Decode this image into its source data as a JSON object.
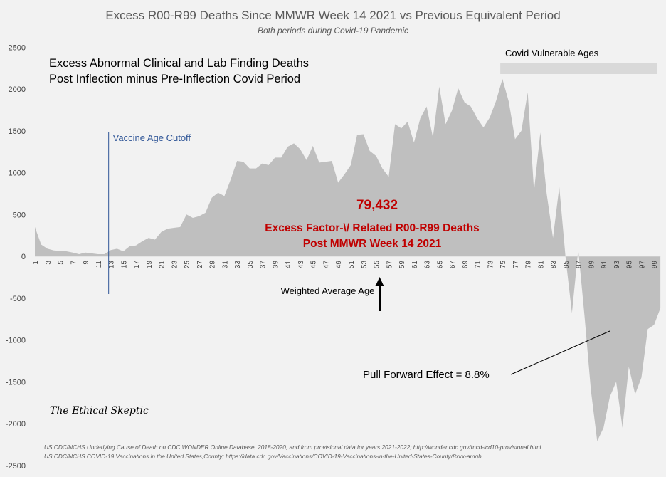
{
  "chart_data": {
    "type": "area",
    "title": "Excess R00-R99 Deaths Since MMWR Week 14 2021 vs Previous Equivalent Period",
    "subtitle": "Both periods during Covid-19 Pandemic",
    "xlabel": "",
    "ylabel": "",
    "ylim": [
      -2500,
      2500
    ],
    "yticks": [
      2500,
      2000,
      1500,
      1000,
      500,
      0,
      -500,
      -1000,
      -1500,
      -2000,
      -2500
    ],
    "x_tick_labels": [
      "1",
      "3",
      "5",
      "7",
      "9",
      "11",
      "13",
      "15",
      "17",
      "19",
      "21",
      "23",
      "25",
      "27",
      "29",
      "31",
      "33",
      "35",
      "37",
      "39",
      "41",
      "43",
      "45",
      "47",
      "49",
      "51",
      "53",
      "55",
      "57",
      "59",
      "61",
      "63",
      "65",
      "67",
      "69",
      "71",
      "73",
      "75",
      "77",
      "79",
      "81",
      "83",
      "85",
      "87",
      "89",
      "91",
      "93",
      "95",
      "97",
      "99"
    ],
    "grid": false,
    "color": "#bfbfbf",
    "x": [
      1,
      2,
      3,
      4,
      5,
      6,
      7,
      8,
      9,
      10,
      11,
      12,
      13,
      14,
      15,
      16,
      17,
      18,
      19,
      20,
      21,
      22,
      23,
      24,
      25,
      26,
      27,
      28,
      29,
      30,
      31,
      32,
      33,
      34,
      35,
      36,
      37,
      38,
      39,
      40,
      41,
      42,
      43,
      44,
      45,
      46,
      47,
      48,
      49,
      50,
      51,
      52,
      53,
      54,
      55,
      56,
      57,
      58,
      59,
      60,
      61,
      62,
      63,
      64,
      65,
      66,
      67,
      68,
      69,
      70,
      71,
      72,
      73,
      74,
      75,
      76,
      77,
      78,
      79,
      80,
      81,
      82,
      83,
      84,
      85,
      86,
      87,
      88,
      89,
      90,
      91,
      92,
      93,
      94,
      95,
      96,
      97,
      98,
      99,
      100
    ],
    "values": [
      350,
      140,
      90,
      70,
      65,
      60,
      45,
      25,
      45,
      35,
      25,
      25,
      75,
      90,
      60,
      120,
      130,
      180,
      220,
      200,
      290,
      330,
      340,
      350,
      500,
      460,
      480,
      520,
      700,
      760,
      720,
      920,
      1140,
      1130,
      1050,
      1050,
      1110,
      1090,
      1180,
      1180,
      1310,
      1350,
      1280,
      1150,
      1320,
      1120,
      1130,
      1140,
      880,
      980,
      1090,
      1450,
      1460,
      1260,
      1200,
      1050,
      950,
      1580,
      1530,
      1610,
      1360,
      1650,
      1790,
      1420,
      2030,
      1580,
      1740,
      2010,
      1840,
      1790,
      1650,
      1540,
      1660,
      1860,
      2120,
      1850,
      1400,
      1500,
      1960,
      780,
      1480,
      750,
      220,
      830,
      -20,
      -680,
      80,
      -720,
      -1600,
      -2210,
      -2050,
      -1680,
      -1500,
      -2050,
      -1320,
      -1650,
      -1450,
      -870,
      -820,
      -620
    ],
    "annotations": {
      "top_left_line1": "Excess Abnormal Clinical and Lab Finding Deaths",
      "top_left_line2": "Post Inflection minus Pre-Inflection Covid Period",
      "covid_vulnerable": "Covid Vulnerable Ages",
      "vaccine_cutoff": "Vaccine Age Cutoff",
      "total_value": "79,432",
      "excess_line1": "Excess Factor-\\/ Related R00-R99 Deaths",
      "excess_line2": "Post MMWR Week 14 2021",
      "weighted_average": "Weighted Average Age",
      "pull_forward": "Pull Forward Effect = 8.8%",
      "brand": "The Ethical Skeptic",
      "source1": "US CDC/NCHS Underlying Cause of Death on CDC WONDER Online Database, 2018-2020, and from provisional data for years 2021-2022; http://wonder.cdc.gov/mcd-icd10-provisional.html",
      "source2": "US CDC/NCHS COVID-19 Vaccinations in the United States,County; https://data.cdc.gov/Vaccinations/COVID-19-Vaccinations-in-the-United-States-County/8xkx-amqh"
    },
    "covid_vulnerable_range": [
      75,
      100
    ],
    "vaccine_cutoff_age": 12,
    "weighted_average_age": 55
  }
}
